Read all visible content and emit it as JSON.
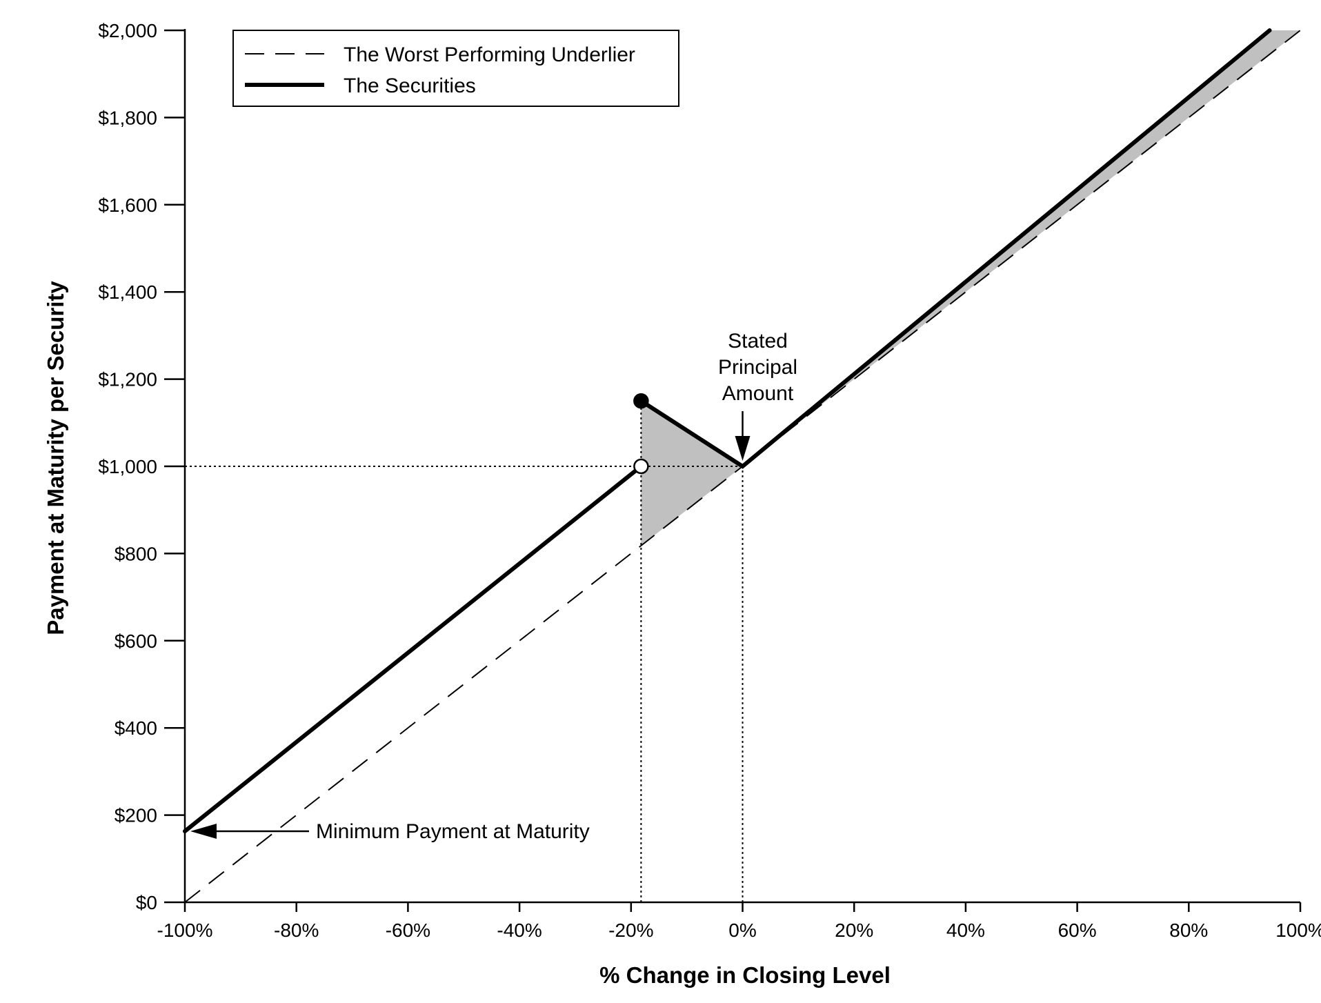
{
  "chart_data": {
    "type": "line",
    "title": "",
    "xlabel": "% Change in Closing Level",
    "ylabel": "Payment at Maturity per Security",
    "xlim": [
      -100,
      100
    ],
    "ylim": [
      0,
      2000
    ],
    "x_ticks": [
      -100,
      -80,
      -60,
      -40,
      -20,
      0,
      20,
      40,
      60,
      80,
      100
    ],
    "x_tick_labels": [
      "-100%",
      "-80%",
      "-60%",
      "-40%",
      "-20%",
      "0%",
      "20%",
      "40%",
      "60%",
      "80%",
      "100%"
    ],
    "y_ticks": [
      0,
      200,
      400,
      600,
      800,
      1000,
      1200,
      1400,
      1600,
      1800,
      2000
    ],
    "y_tick_labels": [
      "$0",
      "$200",
      "$400",
      "$600",
      "$800",
      "$1,000",
      "$1,200",
      "$1,400",
      "$1,600",
      "$1,800",
      "$2,000"
    ],
    "grid": false,
    "legend_position": "top-left",
    "series": [
      {
        "name": "The Worst Performing Underlier",
        "style": "dashed",
        "x": [
          -100,
          100
        ],
        "y": [
          0,
          2000
        ]
      },
      {
        "name": "The Securities",
        "style": "solid",
        "segments": [
          {
            "x": [
              -100,
              -18.2
            ],
            "y": [
              163,
              1000
            ]
          },
          {
            "x": [
              -18.2,
              0,
              94.5
            ],
            "y": [
              1150,
              1000,
              2000
            ]
          }
        ]
      }
    ],
    "markers": [
      {
        "x": -18.2,
        "y": 1150,
        "fill": "filled"
      },
      {
        "x": -18.2,
        "y": 1000,
        "fill": "open"
      }
    ],
    "reference_lines": [
      {
        "from": [
          -100,
          1000
        ],
        "to": [
          0,
          1000
        ]
      },
      {
        "from": [
          -18.2,
          0
        ],
        "to": [
          -18.2,
          1150
        ]
      },
      {
        "from": [
          0,
          0
        ],
        "to": [
          0,
          1000
        ]
      }
    ],
    "shaded_regions": [
      {
        "points": [
          [
            -18.2,
            1150
          ],
          [
            0,
            1000
          ],
          [
            -18.2,
            818
          ]
        ]
      },
      {
        "points": [
          [
            0,
            1000
          ],
          [
            94.5,
            2000
          ],
          [
            100,
            2000
          ],
          [
            0,
            1000
          ]
        ]
      }
    ],
    "annotations": [
      {
        "text": "Minimum Payment at Maturity",
        "point": [
          -100,
          163
        ]
      },
      {
        "text": "Stated\nPrincipal\nAmount",
        "point": [
          0,
          1000
        ]
      }
    ],
    "colors": {
      "line": "#000000",
      "shade": "#c0c0c0"
    }
  }
}
